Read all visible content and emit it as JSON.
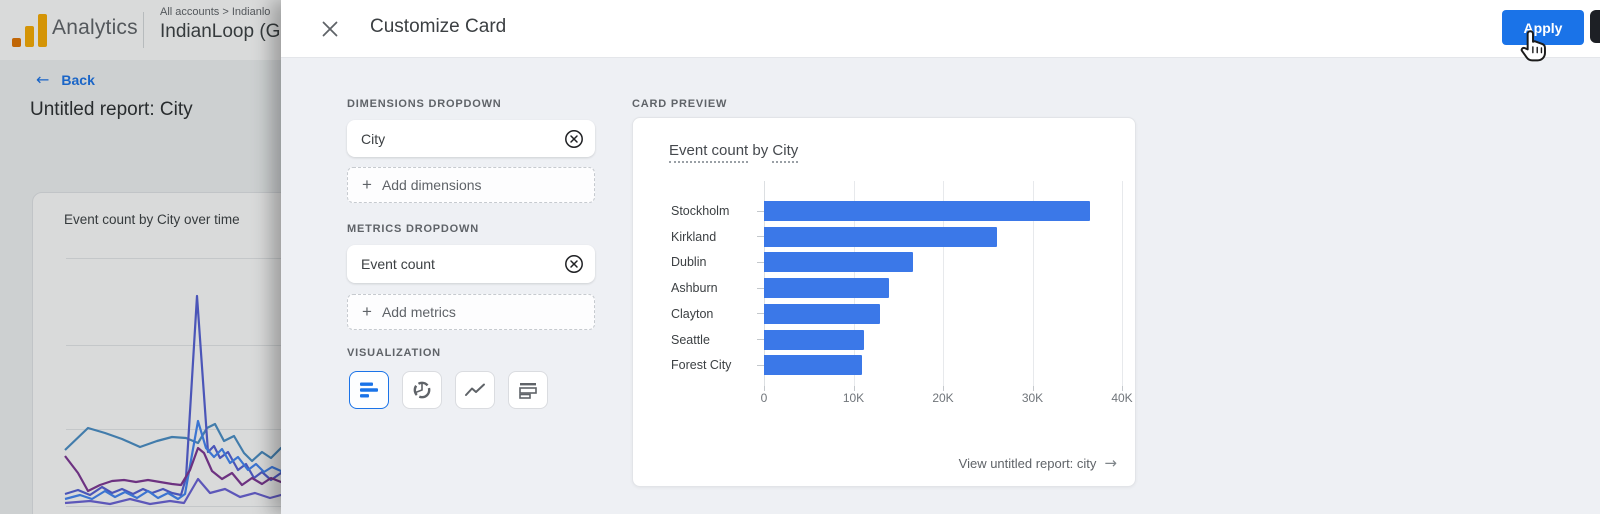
{
  "header": {
    "brand": "Analytics",
    "breadcrumb": "All accounts > Indianlo",
    "property_name": "IndianLoop (G"
  },
  "background_page": {
    "back_label": "Back",
    "report_title": "Untitled report: City",
    "card_title": "Event count by City over time"
  },
  "panel": {
    "title": "Customize Card",
    "apply_label": "Apply",
    "dimensions": {
      "label": "DIMENSIONS DROPDOWN",
      "value": "City",
      "add_label": "Add dimensions"
    },
    "metrics": {
      "label": "METRICS DROPDOWN",
      "value": "Event count",
      "add_label": "Add metrics"
    },
    "visualization": {
      "label": "VISUALIZATION",
      "options": [
        "horizontal-bar-chart",
        "donut-chart",
        "line-chart",
        "table-chart"
      ],
      "selected_index": 0
    }
  },
  "preview": {
    "label": "CARD PREVIEW",
    "title_metric": "Event count",
    "title_connector": " by ",
    "title_dimension": "City",
    "footer_link": "View untitled report: city"
  },
  "icons": {
    "back_arrow": "←",
    "forward_arrow": "→",
    "plus": "+"
  },
  "chart_data": [
    {
      "id": "card-preview-bar-chart",
      "type": "bar",
      "orientation": "horizontal",
      "title": "Event count by City",
      "categories": [
        "Stockholm",
        "Kirkland",
        "Dublin",
        "Ashburn",
        "Clayton",
        "Seattle",
        "Forest City"
      ],
      "values": [
        36400,
        26000,
        16700,
        14000,
        13000,
        11200,
        11000
      ],
      "x_ticks": [
        "0",
        "10K",
        "20K",
        "30K",
        "40K"
      ],
      "xlim": [
        0,
        40000
      ],
      "grid": true,
      "legend": "none",
      "bar_color": "#3b78e8"
    },
    {
      "id": "background-line-chart",
      "type": "line",
      "title": "Event count by City over time",
      "x_axis_visible": false,
      "y_axis_visible": false,
      "series": [
        {
          "name": "line-1",
          "color": "#4a8fc7",
          "points": [
            [
              65,
              450
            ],
            [
              88,
              428
            ],
            [
              105,
              433
            ],
            [
              122,
              439
            ],
            [
              140,
              447
            ],
            [
              157,
              441
            ],
            [
              172,
              437
            ],
            [
              186,
              438
            ],
            [
              198,
              443
            ],
            [
              207,
              428
            ],
            [
              215,
              424
            ],
            [
              224,
              441
            ],
            [
              234,
              436
            ],
            [
              244,
              453
            ],
            [
              252,
              461
            ],
            [
              262,
              452
            ],
            [
              271,
              458
            ],
            [
              281,
              448
            ],
            [
              292,
              452
            ]
          ]
        },
        {
          "name": "line-2",
          "color": "#5560d6",
          "points": [
            [
              65,
              494
            ],
            [
              78,
              490
            ],
            [
              90,
              495
            ],
            [
              102,
              487
            ],
            [
              112,
              493
            ],
            [
              122,
              489
            ],
            [
              133,
              494
            ],
            [
              143,
              489
            ],
            [
              152,
              493
            ],
            [
              163,
              489
            ],
            [
              172,
              493
            ],
            [
              181,
              495
            ],
            [
              186,
              478
            ],
            [
              197,
              296
            ],
            [
              208,
              452
            ],
            [
              214,
              446
            ],
            [
              220,
              458
            ],
            [
              228,
              452
            ],
            [
              238,
              470
            ],
            [
              246,
              464
            ],
            [
              254,
              478
            ],
            [
              262,
              472
            ],
            [
              271,
              480
            ],
            [
              281,
              473
            ],
            [
              292,
              476
            ]
          ]
        },
        {
          "name": "line-3",
          "color": "#4285f4",
          "points": [
            [
              65,
              499
            ],
            [
              80,
              495
            ],
            [
              92,
              499
            ],
            [
              105,
              491
            ],
            [
              115,
              497
            ],
            [
              125,
              492
            ],
            [
              137,
              498
            ],
            [
              148,
              491
            ],
            [
              158,
              498
            ],
            [
              168,
              493
            ],
            [
              178,
              499
            ],
            [
              185,
              494
            ],
            [
              198,
              421
            ],
            [
              206,
              448
            ],
            [
              214,
              457
            ],
            [
              222,
              449
            ],
            [
              230,
              463
            ],
            [
              238,
              457
            ],
            [
              248,
              470
            ],
            [
              256,
              464
            ],
            [
              264,
              472
            ],
            [
              272,
              467
            ],
            [
              281,
              471
            ],
            [
              292,
              469
            ]
          ]
        },
        {
          "name": "line-4",
          "color": "#7d3594",
          "points": [
            [
              65,
              456
            ],
            [
              78,
              473
            ],
            [
              88,
              491
            ],
            [
              100,
              485
            ],
            [
              112,
              481
            ],
            [
              124,
              480
            ],
            [
              136,
              482
            ],
            [
              148,
              480
            ],
            [
              160,
              482
            ],
            [
              172,
              484
            ],
            [
              181,
              485
            ],
            [
              190,
              470
            ],
            [
              198,
              448
            ],
            [
              204,
              453
            ],
            [
              212,
              471
            ],
            [
              222,
              479
            ],
            [
              232,
              473
            ],
            [
              242,
              485
            ],
            [
              252,
              478
            ],
            [
              262,
              484
            ],
            [
              271,
              478
            ],
            [
              281,
              482
            ],
            [
              292,
              480
            ]
          ]
        },
        {
          "name": "line-5",
          "color": "#6a62d8",
          "points": [
            [
              65,
              503
            ],
            [
              90,
              501
            ],
            [
              110,
              504
            ],
            [
              130,
              499
            ],
            [
              150,
              504
            ],
            [
              170,
              501
            ],
            [
              184,
              503
            ],
            [
              198,
              479
            ],
            [
              210,
              493
            ],
            [
              225,
              489
            ],
            [
              240,
              497
            ],
            [
              255,
              493
            ],
            [
              270,
              498
            ],
            [
              281,
              495
            ],
            [
              292,
              496
            ]
          ]
        }
      ]
    }
  ],
  "colors": {
    "accent_blue": "#1a73e8",
    "bar_blue": "#3b78e8",
    "panel_body_bg": "#eef0f4",
    "text_primary": "#3c4043",
    "text_secondary": "#5f6368",
    "border_gray": "#dadce0",
    "logo_amber": "#f9ab00",
    "logo_orange": "#e37400"
  }
}
